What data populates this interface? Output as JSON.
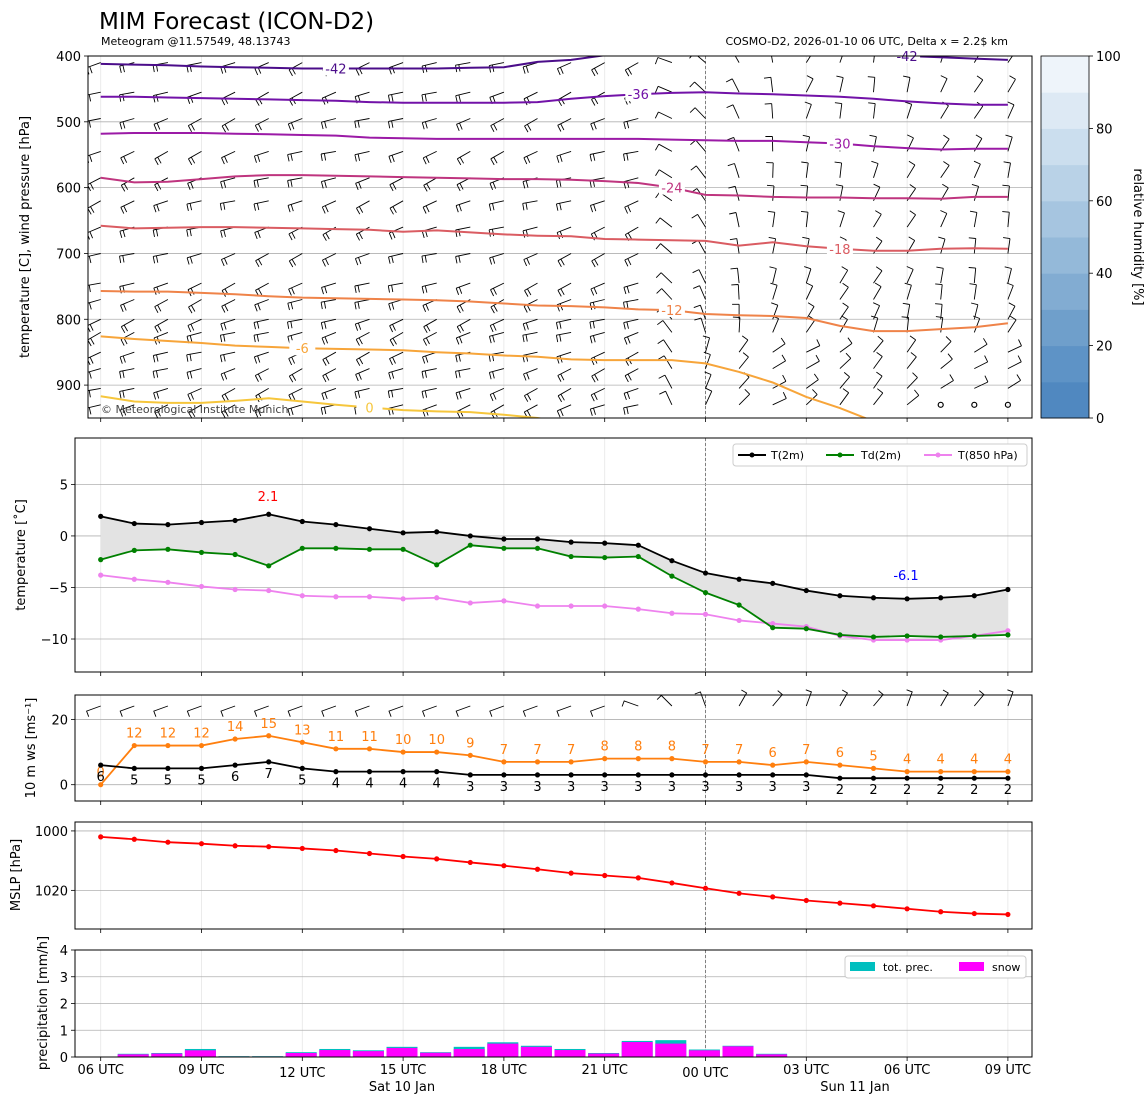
{
  "figure": {
    "title": "MIM Forecast (ICON-D2)",
    "subtitle_left": "Meteogram @11.57549, 48.13743",
    "subtitle_right": "COSMO-D2, 2026-01-10 06 UTC, Delta x = 2.2$ km",
    "copyright": "© Meteorological Institute Munich",
    "time_ticks": [
      "06 UTC",
      "09 UTC",
      "12 UTC",
      "15 UTC",
      "18 UTC",
      "21 UTC",
      "00 UTC",
      "03 UTC",
      "06 UTC",
      "09 UTC"
    ],
    "date_labels": [
      "Sat 10 Jan",
      "Sun 11 Jan"
    ]
  },
  "chart_data": [
    {
      "type": "contour",
      "name": "upper-air",
      "ylabel": "temperature [C], wind pressure [hPa]",
      "ylim": [
        950,
        400
      ],
      "yticks": [
        "400",
        "500",
        "600",
        "700",
        "800",
        "900"
      ],
      "colorbar": {
        "label": "relative humidity [%]",
        "ticks": [
          "0",
          "20",
          "40",
          "60",
          "80",
          "100"
        ]
      },
      "isotherm_labels": [
        "-42",
        "-42",
        "-36",
        "-30",
        "-24",
        "-18",
        "-12",
        "-6",
        "0"
      ],
      "isotherms": [
        {
          "level": -42,
          "color": "#4b0d8a",
          "pressure": [
            412,
            413,
            414,
            416,
            417,
            418,
            419,
            419,
            419,
            419,
            419,
            418,
            417,
            409,
            406,
            399,
            395,
            393,
            393,
            393,
            393,
            393,
            395,
            398,
            400,
            402,
            404,
            406
          ]
        },
        {
          "level": -36,
          "color": "#7212a8",
          "pressure": [
            462,
            462,
            463,
            464,
            465,
            466,
            467,
            468,
            470,
            471,
            471,
            471,
            471,
            470,
            465,
            461,
            458,
            456,
            455,
            457,
            458,
            460,
            462,
            465,
            469,
            472,
            474,
            474
          ]
        },
        {
          "level": -30,
          "color": "#9b1aa6",
          "pressure": [
            518,
            517,
            517,
            517,
            518,
            519,
            520,
            521,
            524,
            525,
            526,
            526,
            526,
            526,
            526,
            526,
            526,
            527,
            528,
            529,
            529,
            531,
            533,
            537,
            540,
            542,
            541,
            541
          ]
        },
        {
          "level": -24,
          "color": "#bf357f",
          "pressure": [
            585,
            592,
            591,
            587,
            583,
            581,
            581,
            582,
            583,
            584,
            585,
            586,
            587,
            587,
            588,
            590,
            593,
            600,
            611,
            612,
            614,
            615,
            615,
            616,
            616,
            617,
            614,
            614
          ]
        },
        {
          "level": -18,
          "color": "#da5c62",
          "pressure": [
            658,
            662,
            661,
            660,
            660,
            661,
            662,
            663,
            664,
            667,
            665,
            668,
            671,
            673,
            674,
            678,
            679,
            680,
            681,
            688,
            683,
            689,
            693,
            696,
            696,
            693,
            692,
            693
          ]
        },
        {
          "level": -12,
          "color": "#ef8349",
          "pressure": [
            757,
            758,
            758,
            760,
            762,
            765,
            767,
            768,
            769,
            770,
            771,
            773,
            776,
            779,
            780,
            782,
            785,
            786,
            792,
            794,
            795,
            798,
            810,
            818,
            818,
            815,
            812,
            806
          ]
        },
        {
          "level": -6,
          "color": "#f7a53a",
          "pressure": [
            826,
            830,
            833,
            836,
            840,
            842,
            844,
            845,
            846,
            847,
            850,
            852,
            855,
            857,
            861,
            862,
            862,
            862,
            867,
            880,
            896,
            918,
            935,
            955,
            970,
            980,
            985,
            990
          ]
        },
        {
          "level": 0,
          "color": "#f6c63c",
          "pressure": [
            917,
            925,
            927,
            927,
            924,
            920,
            925,
            930,
            934,
            938,
            940,
            941,
            945,
            950,
            958,
            965,
            975,
            985,
            990,
            995,
            1000,
            1000,
            1000,
            1000,
            1000,
            1000,
            1000,
            1000
          ]
        }
      ]
    },
    {
      "type": "line",
      "name": "temperature",
      "ylabel": "temperature [˚C]",
      "ylim": [
        -13.2,
        9.5
      ],
      "yticks": [
        "5",
        "0",
        "−5",
        "−10"
      ],
      "legend": [
        "T(2m)",
        "Td(2m)",
        "T(850 hPa)"
      ],
      "annotations": {
        "max": "2.1",
        "min": "-6.1"
      },
      "series": [
        {
          "name": "T(2m)",
          "color": "#000000",
          "values": [
            1.9,
            1.2,
            1.1,
            1.3,
            1.5,
            2.1,
            1.4,
            1.1,
            0.7,
            0.3,
            0.4,
            0.0,
            -0.3,
            -0.3,
            -0.6,
            -0.7,
            -0.9,
            -2.4,
            -3.6,
            -4.2,
            -4.6,
            -5.3,
            -5.8,
            -6.0,
            -6.1,
            -6.0,
            -5.8,
            -5.2
          ]
        },
        {
          "name": "Td(2m)",
          "color": "#008000",
          "values": [
            -2.3,
            -1.4,
            -1.3,
            -1.6,
            -1.8,
            -2.9,
            -1.2,
            -1.2,
            -1.3,
            -1.3,
            -2.8,
            -0.9,
            -1.2,
            -1.2,
            -2.0,
            -2.1,
            -2.0,
            -3.9,
            -5.5,
            -6.7,
            -8.9,
            -9.0,
            -9.6,
            -9.8,
            -9.7,
            -9.8,
            -9.7,
            -9.6
          ]
        },
        {
          "name": "T(850 hPa)",
          "color": "#ee82ee",
          "values": [
            -3.8,
            -4.2,
            -4.5,
            -4.9,
            -5.2,
            -5.3,
            -5.8,
            -5.9,
            -5.9,
            -6.1,
            -6.0,
            -6.5,
            -6.3,
            -6.8,
            -6.8,
            -6.8,
            -7.1,
            -7.5,
            -7.6,
            -8.2,
            -8.5,
            -8.8,
            -9.7,
            -10.1,
            -10.1,
            -10.1,
            -9.7,
            -9.2
          ]
        }
      ]
    },
    {
      "type": "line",
      "name": "wind",
      "ylabel": "10 m ws [ms⁻¹]",
      "ylim": [
        -5,
        27.5
      ],
      "yticks": [
        "20",
        "0"
      ],
      "series": [
        {
          "name": "gust",
          "color": "#ff7f0e",
          "values": [
            0,
            12,
            12,
            12,
            14,
            15,
            13,
            11,
            11,
            10,
            10,
            9,
            7,
            7,
            7,
            8,
            8,
            8,
            7,
            7,
            6,
            7,
            6,
            5,
            4,
            4,
            4,
            4
          ],
          "labels": [
            "0",
            "12",
            "12",
            "12",
            "14",
            "15",
            "13",
            "11",
            "11",
            "10",
            "10",
            "9",
            "7",
            "7",
            "7",
            "8",
            "8",
            "8",
            "7",
            "7",
            "6",
            "7",
            "6",
            "5",
            "4",
            "4",
            "4",
            "4"
          ]
        },
        {
          "name": "mean",
          "color": "#000000",
          "values": [
            6,
            5,
            5,
            5,
            6,
            7,
            5,
            4,
            4,
            4,
            4,
            3,
            3,
            3,
            3,
            3,
            3,
            3,
            3,
            3,
            3,
            3,
            2,
            2,
            2,
            2,
            2,
            2
          ],
          "labels": [
            "6",
            "5",
            "5",
            "5",
            "6",
            "7",
            "5",
            "4",
            "4",
            "4",
            "4",
            "3",
            "3",
            "3",
            "3",
            "3",
            "3",
            "3",
            "3",
            "3",
            "3",
            "3",
            "2",
            "2",
            "2",
            "2",
            "2",
            "2"
          ]
        }
      ]
    },
    {
      "type": "line",
      "name": "pressure",
      "ylabel": "MSLP [hPa]",
      "ylim": [
        997,
        1033
      ],
      "yticks": [
        "1020",
        "1000"
      ],
      "series": [
        {
          "name": "MSLP",
          "color": "#ff0000",
          "values": [
            1002.0,
            1002.8,
            1003.8,
            1004.3,
            1005.0,
            1005.3,
            1005.9,
            1006.6,
            1007.6,
            1008.6,
            1009.4,
            1010.6,
            1011.7,
            1012.9,
            1014.2,
            1015.0,
            1015.8,
            1017.5,
            1019.3,
            1021.0,
            1022.2,
            1023.4,
            1024.3,
            1025.2,
            1026.2,
            1027.2,
            1027.8,
            1028.1
          ]
        }
      ]
    },
    {
      "type": "bar",
      "name": "precipitation",
      "ylabel": "precipitation [mm/h]",
      "ylim": [
        0,
        4
      ],
      "yticks": [
        "4",
        "3",
        "2",
        "1",
        "0"
      ],
      "legend": [
        "tot. prec.",
        "snow"
      ],
      "series": [
        {
          "name": "tot. prec.",
          "color": "#00bfbf",
          "values": [
            0.0,
            0.12,
            0.15,
            0.3,
            0.03,
            0.03,
            0.18,
            0.3,
            0.25,
            0.38,
            0.18,
            0.38,
            0.55,
            0.42,
            0.3,
            0.15,
            0.6,
            0.63,
            0.28,
            0.42,
            0.12,
            0.0,
            0.0,
            0.0,
            0.0,
            0.0,
            0.0,
            0.0
          ]
        },
        {
          "name": "snow",
          "color": "#ff00ff",
          "values": [
            0.0,
            0.1,
            0.13,
            0.25,
            0.02,
            0.02,
            0.15,
            0.26,
            0.22,
            0.34,
            0.16,
            0.3,
            0.5,
            0.38,
            0.26,
            0.13,
            0.56,
            0.5,
            0.25,
            0.4,
            0.1,
            0.0,
            0.0,
            0.0,
            0.0,
            0.0,
            0.0,
            0.0
          ]
        }
      ]
    }
  ]
}
